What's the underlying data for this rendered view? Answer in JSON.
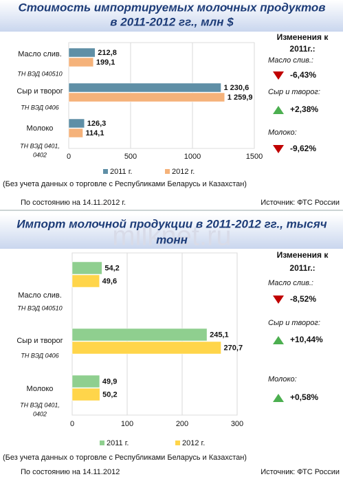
{
  "chart_data": [
    {
      "type": "bar",
      "title": [
        "Стоимость импортируемых молочных продуктов",
        "в 2011-2012 гг., млн $"
      ],
      "categories": [
        "Масло слив.",
        "Сыр и творог",
        "Молоко"
      ],
      "category_codes": [
        [
          "ТН ВЭД  040510"
        ],
        [
          "ТН ВЭД 0406"
        ],
        [
          "ТН ВЭД 0401,",
          "0402"
        ]
      ],
      "series": [
        {
          "name": "2011 г.",
          "color": "#5f8fa6",
          "label_color": "#4a7d96",
          "values": [
            212.8,
            1230.6,
            126.3
          ],
          "value_labels": [
            "212,8",
            "1 230,6",
            "126,3"
          ]
        },
        {
          "name": "2012 г.",
          "color": "#f5b27a",
          "label_color": "#e8893a",
          "values": [
            199.1,
            1259.9,
            114.1
          ],
          "value_labels": [
            "199,1",
            "1 259,9",
            "114,1"
          ]
        }
      ],
      "xlim": [
        0,
        1500
      ],
      "xticks": [
        0,
        500,
        1000,
        1500
      ],
      "grid": true,
      "changes": {
        "title": [
          "Изменения к",
          "2011г.:"
        ],
        "items": [
          {
            "label": "Масло слив.:",
            "value": -6.43,
            "value_label": "-6,43%"
          },
          {
            "label": "Сыр и творог:",
            "value": 2.38,
            "value_label": "+2,38%"
          },
          {
            "label": "Молоко:",
            "value": -9.62,
            "value_label": "-9,62%"
          }
        ]
      },
      "note": "(Без учета данных о торговле с Республиками Беларусь и Казахстан)",
      "date": "По состоянию на  14.11.2012 г.",
      "source": "Источник: ФТС России"
    },
    {
      "type": "bar",
      "title": [
        "Импорт молочной продукции в 2011-2012 гг., тысяч",
        "тонн"
      ],
      "categories": [
        "Масло слив.",
        "Сыр и творог",
        "Молоко"
      ],
      "category_codes": [
        [
          "ТН ВЭД  040510"
        ],
        [
          "ТН ВЭД 0406"
        ],
        [
          "ТН ВЭД 0401,",
          "0402"
        ]
      ],
      "series": [
        {
          "name": "2011 г.",
          "color": "#8fcf8f",
          "label_color": "#2e6b2e",
          "values": [
            54.2,
            245.1,
            49.9
          ],
          "value_labels": [
            "54,2",
            "245,1",
            "49,9"
          ]
        },
        {
          "name": "2012 г.",
          "color": "#ffd54a",
          "label_color": "#c07818",
          "values": [
            49.6,
            270.7,
            50.2
          ],
          "value_labels": [
            "49,6",
            "270,7",
            "50,2"
          ]
        }
      ],
      "xlim": [
        0,
        300
      ],
      "xticks": [
        0,
        100,
        200,
        300
      ],
      "grid": true,
      "changes": {
        "title": [
          "Изменения к",
          "2011г.:"
        ],
        "items": [
          {
            "label": "Масло слив.:",
            "value": -8.52,
            "value_label": "-8,52%"
          },
          {
            "label": "Сыр и творог:",
            "value": 10.44,
            "value_label": "+10,44%"
          },
          {
            "label": "Молоко:",
            "value": 0.58,
            "value_label": "+0,58%"
          }
        ]
      },
      "note": "(Без учета данных о торговле с Республиками Беларусь и Казахстан)",
      "date": "По состоянию на    14.11.2012",
      "source": "Источник: ФТС России"
    }
  ],
  "watermark": "milknet.ru"
}
